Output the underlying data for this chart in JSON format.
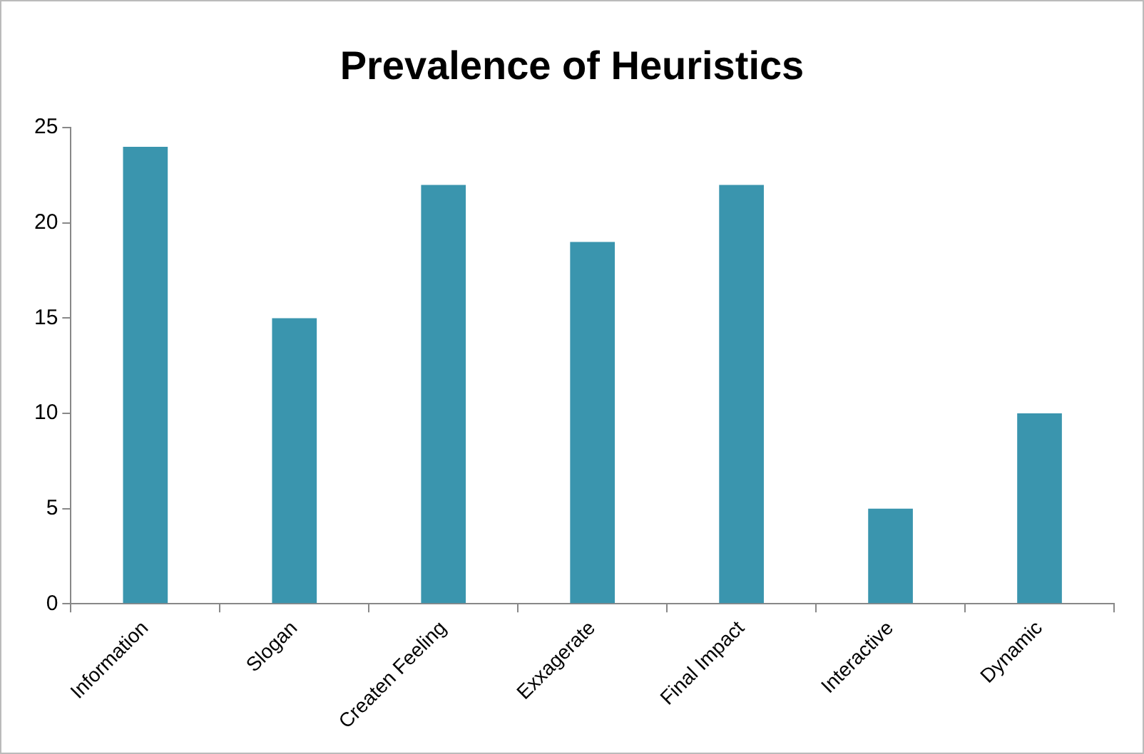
{
  "chart_data": {
    "type": "bar",
    "title": "Prevalence of Heuristics",
    "categories": [
      "Information",
      "Slogan",
      "Createn Feeling",
      "Exxagerate",
      "Final Impact",
      "Interactive",
      "Dynamic"
    ],
    "values": [
      24,
      15,
      22,
      19,
      22,
      5,
      10
    ],
    "color": "#3a95ae",
    "ylim": [
      0,
      25
    ],
    "yticks": [
      0,
      5,
      10,
      15,
      20,
      25
    ],
    "grid": false,
    "legend": false
  }
}
